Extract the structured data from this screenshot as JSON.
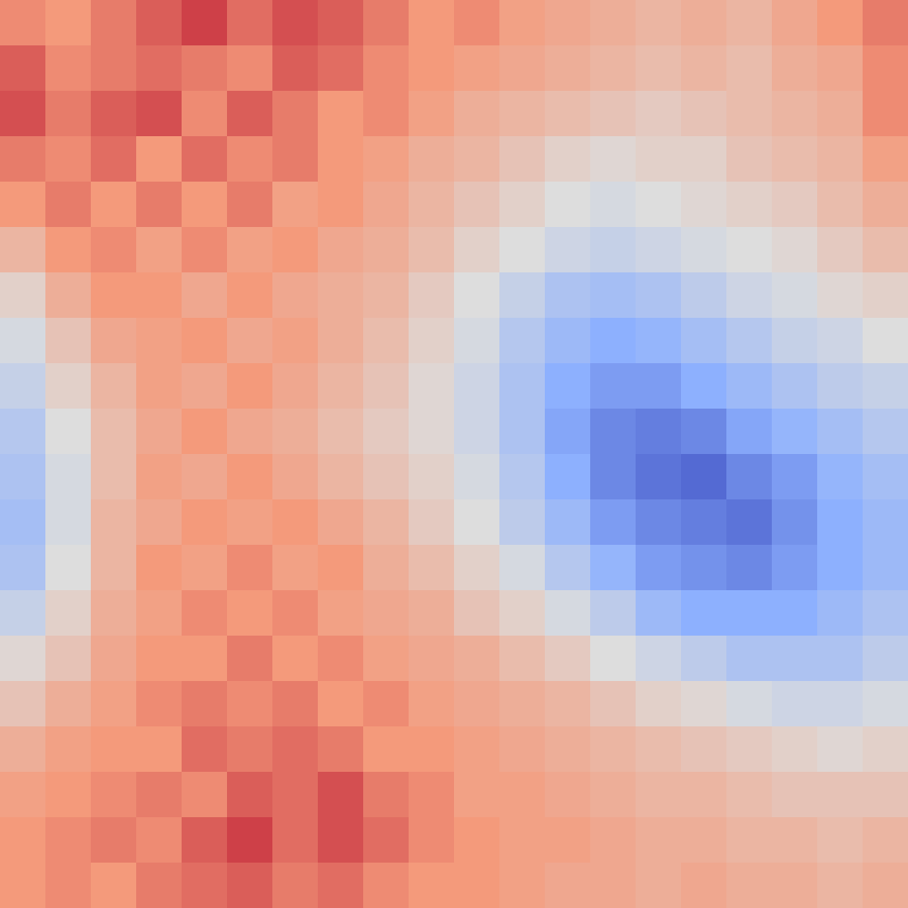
{
  "chart_data": {
    "type": "heatmap",
    "tick_labels": false,
    "color_range": [
      -1,
      1
    ],
    "cells": [
      [
        0.55,
        0.5,
        0.6,
        0.7,
        0.8,
        0.65,
        0.75,
        0.7,
        0.6,
        0.5,
        0.55,
        0.45,
        0.4,
        0.35,
        0.3,
        0.35,
        0.3,
        0.4,
        0.5,
        0.6
      ],
      [
        0.7,
        0.55,
        0.6,
        0.65,
        0.6,
        0.55,
        0.7,
        0.65,
        0.55,
        0.5,
        0.45,
        0.4,
        0.35,
        0.3,
        0.25,
        0.3,
        0.25,
        0.35,
        0.4,
        0.55
      ],
      [
        0.75,
        0.6,
        0.7,
        0.75,
        0.55,
        0.7,
        0.6,
        0.5,
        0.55,
        0.45,
        0.35,
        0.3,
        0.25,
        0.2,
        0.15,
        0.2,
        0.25,
        0.3,
        0.35,
        0.55
      ],
      [
        0.6,
        0.55,
        0.65,
        0.5,
        0.65,
        0.55,
        0.6,
        0.5,
        0.45,
        0.35,
        0.3,
        0.2,
        0.1,
        0.05,
        0.1,
        0.1,
        0.2,
        0.25,
        0.3,
        0.45
      ],
      [
        0.5,
        0.6,
        0.5,
        0.6,
        0.5,
        0.6,
        0.45,
        0.5,
        0.4,
        0.3,
        0.2,
        0.1,
        0.0,
        -0.05,
        0.0,
        0.05,
        0.1,
        0.15,
        0.25,
        0.35
      ],
      [
        0.3,
        0.5,
        0.55,
        0.45,
        0.55,
        0.45,
        0.5,
        0.4,
        0.35,
        0.25,
        0.1,
        0.0,
        -0.1,
        -0.15,
        -0.1,
        -0.05,
        0.0,
        0.05,
        0.15,
        0.25
      ],
      [
        0.1,
        0.35,
        0.5,
        0.5,
        0.4,
        0.5,
        0.4,
        0.35,
        0.3,
        0.15,
        0.0,
        -0.15,
        -0.3,
        -0.35,
        -0.3,
        -0.2,
        -0.1,
        -0.05,
        0.05,
        0.1
      ],
      [
        -0.05,
        0.2,
        0.4,
        0.45,
        0.5,
        0.4,
        0.45,
        0.35,
        0.25,
        0.1,
        -0.05,
        -0.25,
        -0.4,
        -0.5,
        -0.45,
        -0.35,
        -0.25,
        -0.15,
        -0.1,
        0.0
      ],
      [
        -0.15,
        0.1,
        0.3,
        0.45,
        0.4,
        0.5,
        0.4,
        0.3,
        0.2,
        0.05,
        -0.1,
        -0.3,
        -0.5,
        -0.6,
        -0.6,
        -0.5,
        -0.4,
        -0.3,
        -0.2,
        -0.15
      ],
      [
        -0.25,
        0.0,
        0.25,
        0.4,
        0.5,
        0.4,
        0.35,
        0.25,
        0.15,
        0.05,
        -0.1,
        -0.3,
        -0.55,
        -0.7,
        -0.75,
        -0.7,
        -0.55,
        -0.45,
        -0.35,
        -0.25
      ],
      [
        -0.3,
        -0.05,
        0.25,
        0.45,
        0.4,
        0.5,
        0.4,
        0.3,
        0.2,
        0.1,
        -0.05,
        -0.25,
        -0.5,
        -0.7,
        -0.8,
        -0.85,
        -0.7,
        -0.6,
        -0.45,
        -0.35
      ],
      [
        -0.35,
        -0.05,
        0.3,
        0.4,
        0.5,
        0.45,
        0.5,
        0.4,
        0.3,
        0.15,
        0.0,
        -0.2,
        -0.4,
        -0.6,
        -0.7,
        -0.75,
        -0.8,
        -0.65,
        -0.5,
        -0.4
      ],
      [
        -0.3,
        0.0,
        0.3,
        0.5,
        0.45,
        0.55,
        0.45,
        0.5,
        0.35,
        0.25,
        0.1,
        -0.05,
        -0.25,
        -0.45,
        -0.6,
        -0.65,
        -0.7,
        -0.6,
        -0.5,
        -0.4
      ],
      [
        -0.15,
        0.1,
        0.35,
        0.45,
        0.55,
        0.5,
        0.55,
        0.45,
        0.4,
        0.35,
        0.2,
        0.1,
        -0.05,
        -0.2,
        -0.4,
        -0.5,
        -0.5,
        -0.5,
        -0.4,
        -0.3
      ],
      [
        0.05,
        0.2,
        0.4,
        0.5,
        0.5,
        0.6,
        0.5,
        0.55,
        0.45,
        0.4,
        0.35,
        0.25,
        0.15,
        0.0,
        -0.1,
        -0.2,
        -0.3,
        -0.3,
        -0.3,
        -0.2
      ],
      [
        0.2,
        0.35,
        0.45,
        0.55,
        0.6,
        0.55,
        0.6,
        0.5,
        0.55,
        0.45,
        0.4,
        0.35,
        0.3,
        0.2,
        0.1,
        0.05,
        -0.05,
        -0.1,
        -0.1,
        -0.05
      ],
      [
        0.35,
        0.45,
        0.5,
        0.5,
        0.65,
        0.6,
        0.65,
        0.6,
        0.5,
        0.5,
        0.45,
        0.4,
        0.35,
        0.3,
        0.25,
        0.2,
        0.15,
        0.1,
        0.05,
        0.1
      ],
      [
        0.45,
        0.5,
        0.55,
        0.6,
        0.55,
        0.7,
        0.65,
        0.75,
        0.6,
        0.55,
        0.45,
        0.45,
        0.4,
        0.35,
        0.3,
        0.3,
        0.25,
        0.2,
        0.2,
        0.2
      ],
      [
        0.5,
        0.55,
        0.6,
        0.55,
        0.7,
        0.8,
        0.65,
        0.75,
        0.65,
        0.55,
        0.5,
        0.45,
        0.45,
        0.4,
        0.35,
        0.35,
        0.3,
        0.3,
        0.25,
        0.3
      ],
      [
        0.5,
        0.55,
        0.5,
        0.6,
        0.65,
        0.7,
        0.6,
        0.65,
        0.55,
        0.5,
        0.5,
        0.45,
        0.4,
        0.4,
        0.35,
        0.4,
        0.35,
        0.35,
        0.3,
        0.35
      ]
    ]
  }
}
